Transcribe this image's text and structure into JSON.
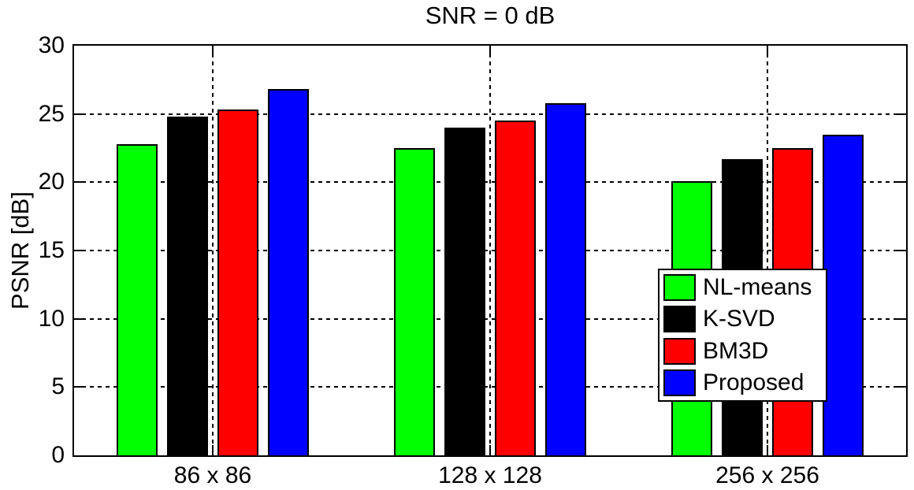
{
  "chart_data": {
    "type": "bar",
    "title": "SNR = 0 dB",
    "xlabel": "",
    "ylabel": "PSNR [dB]",
    "categories": [
      "86 x 86",
      "128 x 128",
      "256 x 256"
    ],
    "series": [
      {
        "name": "NL-means",
        "color": "#00ff00",
        "values": [
          22.8,
          22.5,
          20.1
        ]
      },
      {
        "name": "K-SVD",
        "color": "#000000",
        "values": [
          24.8,
          24.0,
          21.7
        ]
      },
      {
        "name": "BM3D",
        "color": "#ff0000",
        "values": [
          25.3,
          24.5,
          22.5
        ]
      },
      {
        "name": "Proposed",
        "color": "#0000ff",
        "values": [
          26.8,
          25.8,
          23.5
        ]
      }
    ],
    "ylim": [
      0,
      30
    ],
    "yticks": [
      0,
      5,
      10,
      15,
      20,
      25,
      30
    ],
    "grid": "dotted-black",
    "gridlines_at": [
      5,
      10,
      15,
      20,
      25
    ],
    "legend_position": "lower-right-inside",
    "bar_edge_color": "#000000",
    "axis_color": "#000000",
    "background_color": "#ffffff"
  }
}
